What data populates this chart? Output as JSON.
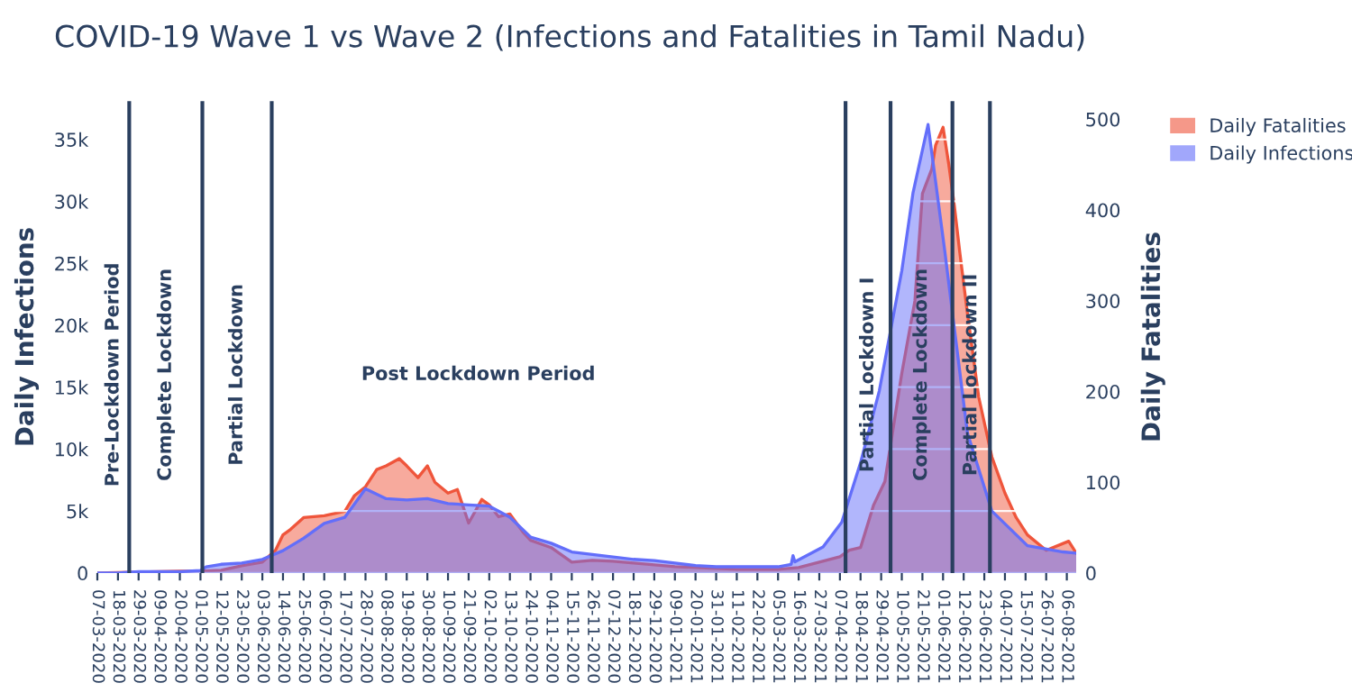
{
  "chart_data": {
    "type": "area",
    "title": "COVID-19 Wave 1 vs Wave 2 (Infections and Fatalities in Tamil Nadu)",
    "ylabel": "Daily Infections",
    "y2label": "Daily Fatalities",
    "series": [
      {
        "name": "Daily Fatalities",
        "color": "#ef553b",
        "axis": "y2",
        "x": [
          "2020-03-07",
          "2020-04-20",
          "2020-05-01",
          "2020-05-12",
          "2020-05-23",
          "2020-06-03",
          "2020-06-10",
          "2020-06-14",
          "2020-06-18",
          "2020-06-25",
          "2020-07-06",
          "2020-07-17",
          "2020-07-22",
          "2020-07-28",
          "2020-08-03",
          "2020-08-08",
          "2020-08-15",
          "2020-08-19",
          "2020-08-25",
          "2020-08-30",
          "2020-09-03",
          "2020-09-10",
          "2020-09-15",
          "2020-09-21",
          "2020-09-28",
          "2020-10-02",
          "2020-10-07",
          "2020-10-13",
          "2020-10-20",
          "2020-10-24",
          "2020-11-04",
          "2020-11-15",
          "2020-11-26",
          "2020-12-07",
          "2020-12-18",
          "2020-12-29",
          "2021-01-09",
          "2021-01-20",
          "2021-01-31",
          "2021-02-11",
          "2021-02-22",
          "2021-03-05",
          "2021-03-16",
          "2021-03-27",
          "2021-04-07",
          "2021-04-12",
          "2021-04-18",
          "2021-04-25",
          "2021-05-01",
          "2021-05-05",
          "2021-05-10",
          "2021-05-17",
          "2021-05-21",
          "2021-05-26",
          "2021-05-28",
          "2021-06-01",
          "2021-06-04",
          "2021-06-07",
          "2021-06-10",
          "2021-06-14",
          "2021-06-20",
          "2021-06-27",
          "2021-07-04",
          "2021-07-10",
          "2021-07-16",
          "2021-07-26",
          "2021-08-07",
          "2021-08-11"
        ],
        "values": [
          0,
          2,
          2,
          3,
          8,
          12,
          25,
          42,
          48,
          61,
          63,
          68,
          85,
          95,
          114,
          118,
          126,
          118,
          105,
          118,
          100,
          88,
          92,
          55,
          81,
          75,
          62,
          65,
          45,
          36,
          28,
          12,
          14,
          13,
          11,
          9,
          7,
          6,
          5,
          4,
          4,
          4,
          6,
          12,
          18,
          25,
          28,
          75,
          101,
          154,
          220,
          300,
          418,
          445,
          471,
          491,
          451,
          405,
          352,
          286,
          194,
          128,
          88,
          61,
          42,
          25,
          35,
          22
        ]
      },
      {
        "name": "Daily Infections",
        "color": "#636efa",
        "x": [
          "2020-03-07",
          "2020-03-18",
          "2020-03-29",
          "2020-04-09",
          "2020-04-20",
          "2020-05-01",
          "2020-05-04",
          "2020-05-12",
          "2020-05-23",
          "2020-06-03",
          "2020-06-14",
          "2020-06-25",
          "2020-07-06",
          "2020-07-17",
          "2020-07-28",
          "2020-08-08",
          "2020-08-19",
          "2020-08-30",
          "2020-09-10",
          "2020-09-21",
          "2020-10-02",
          "2020-10-13",
          "2020-10-24",
          "2020-11-04",
          "2020-11-15",
          "2020-11-26",
          "2020-12-07",
          "2020-12-18",
          "2020-12-29",
          "2021-01-09",
          "2021-01-20",
          "2021-01-31",
          "2021-02-11",
          "2021-02-22",
          "2021-03-05",
          "2021-03-12",
          "2021-03-13",
          "2021-03-14",
          "2021-03-29",
          "2021-04-08",
          "2021-04-18",
          "2021-04-28",
          "2021-05-10",
          "2021-05-16",
          "2021-05-24",
          "2021-06-02",
          "2021-06-06",
          "2021-06-14",
          "2021-06-27",
          "2021-07-16",
          "2021-08-04",
          "2021-08-11"
        ],
        "values": [
          0,
          0,
          100,
          100,
          100,
          200,
          500,
          700,
          800,
          1100,
          1800,
          2800,
          4000,
          4500,
          6800,
          6000,
          5900,
          6000,
          5600,
          5500,
          5400,
          4500,
          2900,
          2400,
          1700,
          1500,
          1300,
          1100,
          1000,
          800,
          600,
          500,
          500,
          500,
          500,
          700,
          1400,
          900,
          2100,
          4100,
          8900,
          14700,
          24400,
          30700,
          36200,
          25900,
          21000,
          11300,
          5000,
          2200,
          1700,
          1600
        ]
      }
    ],
    "xlim": [
      "2020-03-07",
      "2021-08-11"
    ],
    "xticks": [
      {
        "value": "2020-03-07",
        "label": "07-03-2020"
      },
      {
        "value": "2020-03-18",
        "label": "18-03-2020"
      },
      {
        "value": "2020-03-29",
        "label": "29-03-2020"
      },
      {
        "value": "2020-04-09",
        "label": "09-04-2020"
      },
      {
        "value": "2020-04-20",
        "label": "20-04-2020"
      },
      {
        "value": "2020-05-01",
        "label": "01-05-2020"
      },
      {
        "value": "2020-05-12",
        "label": "12-05-2020"
      },
      {
        "value": "2020-05-23",
        "label": "23-05-2020"
      },
      {
        "value": "2020-06-03",
        "label": "03-06-2020"
      },
      {
        "value": "2020-06-14",
        "label": "14-06-2020"
      },
      {
        "value": "2020-06-25",
        "label": "25-06-2020"
      },
      {
        "value": "2020-07-06",
        "label": "06-07-2020"
      },
      {
        "value": "2020-07-17",
        "label": "17-07-2020"
      },
      {
        "value": "2020-07-28",
        "label": "28-07-2020"
      },
      {
        "value": "2020-08-08",
        "label": "08-08-2020"
      },
      {
        "value": "2020-08-19",
        "label": "19-08-2020"
      },
      {
        "value": "2020-08-30",
        "label": "30-08-2020"
      },
      {
        "value": "2020-09-10",
        "label": "10-09-2020"
      },
      {
        "value": "2020-09-21",
        "label": "21-09-2020"
      },
      {
        "value": "2020-10-02",
        "label": "02-10-2020"
      },
      {
        "value": "2020-10-13",
        "label": "13-10-2020"
      },
      {
        "value": "2020-10-24",
        "label": "24-10-2020"
      },
      {
        "value": "2020-11-04",
        "label": "04-11-2020"
      },
      {
        "value": "2020-11-15",
        "label": "15-11-2020"
      },
      {
        "value": "2020-11-26",
        "label": "26-11-2020"
      },
      {
        "value": "2020-12-07",
        "label": "07-12-2020"
      },
      {
        "value": "2020-12-18",
        "label": "18-12-2020"
      },
      {
        "value": "2020-12-29",
        "label": "29-12-2020"
      },
      {
        "value": "2021-01-09",
        "label": "09-01-2021"
      },
      {
        "value": "2021-01-20",
        "label": "20-01-2021"
      },
      {
        "value": "2021-01-31",
        "label": "31-01-2021"
      },
      {
        "value": "2021-02-11",
        "label": "11-02-2021"
      },
      {
        "value": "2021-02-22",
        "label": "22-02-2021"
      },
      {
        "value": "2021-03-05",
        "label": "05-03-2021"
      },
      {
        "value": "2021-03-16",
        "label": "16-03-2021"
      },
      {
        "value": "2021-03-27",
        "label": "27-03-2021"
      },
      {
        "value": "2021-04-07",
        "label": "07-04-2021"
      },
      {
        "value": "2021-04-18",
        "label": "18-04-2021"
      },
      {
        "value": "2021-04-29",
        "label": "29-04-2021"
      },
      {
        "value": "2021-05-10",
        "label": "10-05-2021"
      },
      {
        "value": "2021-05-21",
        "label": "21-05-2021"
      },
      {
        "value": "2021-06-01",
        "label": "01-06-2021"
      },
      {
        "value": "2021-06-12",
        "label": "12-06-2021"
      },
      {
        "value": "2021-06-23",
        "label": "23-06-2021"
      },
      {
        "value": "2021-07-04",
        "label": "04-07-2021"
      },
      {
        "value": "2021-07-15",
        "label": "15-07-2021"
      },
      {
        "value": "2021-07-26",
        "label": "26-07-2021"
      },
      {
        "value": "2021-08-06",
        "label": "06-08-2021"
      }
    ],
    "ylim": [
      0,
      38100
    ],
    "yticks": [
      0,
      {
        "value": 5000,
        "label": "5k"
      },
      {
        "value": 10000,
        "label": "10k"
      },
      {
        "value": 15000,
        "label": "15k"
      },
      {
        "value": 20000,
        "label": "20k"
      },
      {
        "value": 25000,
        "label": "25k"
      },
      {
        "value": 30000,
        "label": "30k"
      },
      {
        "value": 35000,
        "label": "35k"
      }
    ],
    "y2lim": [
      0,
      520
    ],
    "y2ticks": [
      0,
      100,
      200,
      300,
      400,
      500
    ],
    "ref_lines": [
      {
        "axis": "x",
        "value": "2020-03-24",
        "color": "#2a3f5f"
      },
      {
        "axis": "x",
        "value": "2020-05-02",
        "color": "#2a3f5f"
      },
      {
        "axis": "x",
        "value": "2020-06-08",
        "color": "#2a3f5f"
      },
      {
        "axis": "x",
        "value": "2021-04-10",
        "color": "#2a3f5f"
      },
      {
        "axis": "x",
        "value": "2021-05-04",
        "color": "#2a3f5f"
      },
      {
        "axis": "x",
        "value": "2021-06-06",
        "color": "#2a3f5f"
      },
      {
        "axis": "x",
        "value": "2021-06-26",
        "color": "#2a3f5f"
      }
    ],
    "annotations": [
      "Pre-Lockdown Period",
      "Complete Lockdown",
      "Partial Lockdown",
      "Post Lockdown Period",
      "Partial Lockdown I",
      "Complete Lockdown",
      "Partial Lockdown II"
    ],
    "grid": true,
    "legend": "top right"
  }
}
